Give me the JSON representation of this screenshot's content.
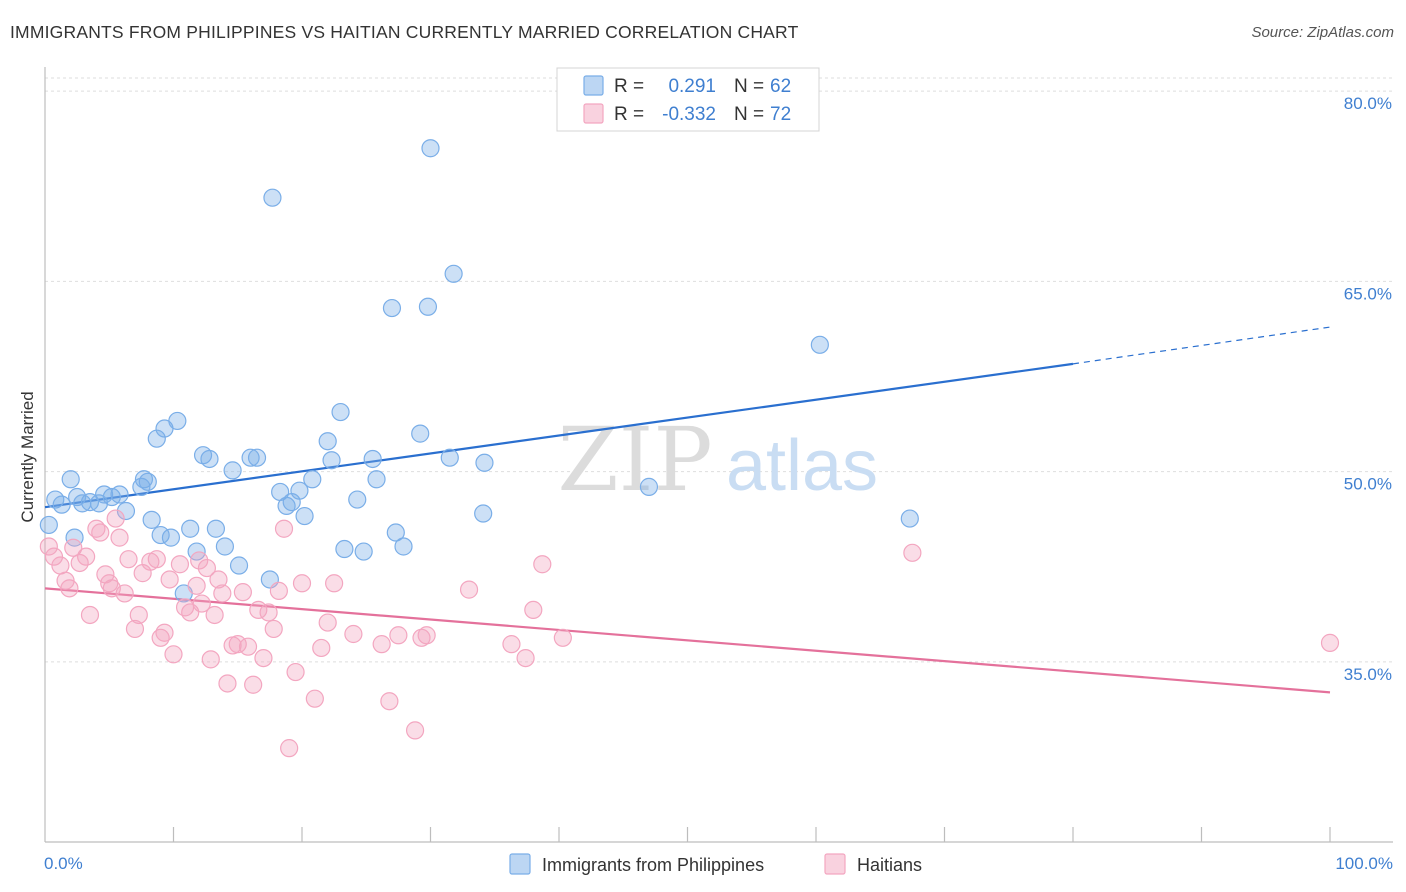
{
  "chart_data": {
    "type": "scatter",
    "title": "IMMIGRANTS FROM PHILIPPINES VS HAITIAN CURRENTLY MARRIED CORRELATION CHART",
    "source": "Source: ZipAtlas.com",
    "ylabel": "Currently Married",
    "xlim": [
      0,
      100
    ],
    "ylim": [
      20.8,
      82.3
    ],
    "x_tick_labels": [
      "0.0%",
      "100.0%"
    ],
    "y_ticks": [
      35.0,
      50.0,
      65.0,
      80.0
    ],
    "y_tick_labels": [
      "35.0%",
      "50.0%",
      "65.0%",
      "80.0%"
    ],
    "grid": true,
    "legend_position": "top-center",
    "watermark": {
      "part1": "ZIP",
      "part2": "atlas"
    },
    "stats": [
      {
        "r_label": "R =",
        "r_value": "0.291",
        "n_label": "N =",
        "n_value": "62"
      },
      {
        "r_label": "R =",
        "r_value": "-0.332",
        "n_label": "N =",
        "n_value": "72"
      }
    ],
    "series": [
      {
        "name": "Immigrants from Philippines",
        "color": "#7aaee8",
        "line_color": "#2a6fcf",
        "trend": {
          "x0": 0,
          "y0": 47.2,
          "x1": 80,
          "y1": 58.5,
          "x_dashed_end": 100,
          "y_dashed_end": 61.4
        },
        "points": [
          [
            0.3,
            45.8
          ],
          [
            0.8,
            47.8
          ],
          [
            1.3,
            47.4
          ],
          [
            2.0,
            49.4
          ],
          [
            2.3,
            44.8
          ],
          [
            2.9,
            47.5
          ],
          [
            3.5,
            47.6
          ],
          [
            4.2,
            47.5
          ],
          [
            4.6,
            48.2
          ],
          [
            5.2,
            48.0
          ],
          [
            5.8,
            48.2
          ],
          [
            6.3,
            46.9
          ],
          [
            7.5,
            48.8
          ],
          [
            7.7,
            49.4
          ],
          [
            8.0,
            49.2
          ],
          [
            8.3,
            46.2
          ],
          [
            8.7,
            52.6
          ],
          [
            9.3,
            53.4
          ],
          [
            9.8,
            44.8
          ],
          [
            10.3,
            54.0
          ],
          [
            10.8,
            40.4
          ],
          [
            11.3,
            45.5
          ],
          [
            11.8,
            43.7
          ],
          [
            12.3,
            51.3
          ],
          [
            12.8,
            51.0
          ],
          [
            13.3,
            45.5
          ],
          [
            14.0,
            44.1
          ],
          [
            14.6,
            50.1
          ],
          [
            15.1,
            42.6
          ],
          [
            16.0,
            51.1
          ],
          [
            16.5,
            51.1
          ],
          [
            17.5,
            41.5
          ],
          [
            17.7,
            71.6
          ],
          [
            18.3,
            48.4
          ],
          [
            18.8,
            47.3
          ],
          [
            19.2,
            47.6
          ],
          [
            19.8,
            48.5
          ],
          [
            20.2,
            46.5
          ],
          [
            20.8,
            49.4
          ],
          [
            22.0,
            52.4
          ],
          [
            22.3,
            50.9
          ],
          [
            23.0,
            54.7
          ],
          [
            23.3,
            43.9
          ],
          [
            24.3,
            47.8
          ],
          [
            24.8,
            43.7
          ],
          [
            25.5,
            51.0
          ],
          [
            25.8,
            49.4
          ],
          [
            27.0,
            62.9
          ],
          [
            27.3,
            45.2
          ],
          [
            27.9,
            44.1
          ],
          [
            29.2,
            53.0
          ],
          [
            29.8,
            63.0
          ],
          [
            30.0,
            75.5
          ],
          [
            31.5,
            51.1
          ],
          [
            31.8,
            65.6
          ],
          [
            34.1,
            46.7
          ],
          [
            34.2,
            50.7
          ],
          [
            47.0,
            48.8
          ],
          [
            60.3,
            60.0
          ],
          [
            67.3,
            46.3
          ],
          [
            2.5,
            48.0
          ],
          [
            9.0,
            45.0
          ]
        ]
      },
      {
        "name": "Haitians",
        "color": "#f3a6c0",
        "line_color": "#e4719b",
        "trend": {
          "x0": 0,
          "y0": 40.8,
          "x1": 100,
          "y1": 32.6
        },
        "points": [
          [
            0.3,
            44.1
          ],
          [
            0.7,
            43.3
          ],
          [
            1.2,
            42.6
          ],
          [
            1.6,
            41.4
          ],
          [
            1.9,
            40.8
          ],
          [
            2.2,
            44.0
          ],
          [
            2.7,
            42.8
          ],
          [
            3.2,
            43.3
          ],
          [
            3.5,
            38.7
          ],
          [
            4.0,
            45.5
          ],
          [
            4.3,
            45.2
          ],
          [
            4.7,
            41.9
          ],
          [
            5.0,
            41.2
          ],
          [
            5.5,
            46.3
          ],
          [
            5.8,
            44.8
          ],
          [
            6.2,
            40.4
          ],
          [
            6.5,
            43.1
          ],
          [
            7.0,
            37.6
          ],
          [
            7.3,
            38.7
          ],
          [
            7.6,
            42.0
          ],
          [
            8.2,
            42.9
          ],
          [
            8.7,
            43.1
          ],
          [
            9.0,
            36.9
          ],
          [
            9.3,
            37.3
          ],
          [
            9.7,
            41.5
          ],
          [
            10.0,
            35.6
          ],
          [
            10.5,
            42.7
          ],
          [
            10.9,
            39.3
          ],
          [
            11.3,
            38.9
          ],
          [
            11.8,
            41.0
          ],
          [
            12.2,
            39.6
          ],
          [
            12.6,
            42.4
          ],
          [
            12.9,
            35.2
          ],
          [
            13.2,
            38.7
          ],
          [
            13.5,
            41.5
          ],
          [
            13.8,
            40.4
          ],
          [
            14.2,
            33.3
          ],
          [
            14.6,
            36.3
          ],
          [
            15.0,
            36.4
          ],
          [
            15.4,
            40.5
          ],
          [
            15.8,
            36.2
          ],
          [
            16.2,
            33.2
          ],
          [
            16.6,
            39.1
          ],
          [
            17.0,
            35.3
          ],
          [
            17.4,
            38.9
          ],
          [
            17.8,
            37.6
          ],
          [
            18.2,
            40.6
          ],
          [
            18.6,
            45.5
          ],
          [
            19.0,
            28.2
          ],
          [
            19.5,
            34.2
          ],
          [
            20.0,
            41.2
          ],
          [
            21.0,
            32.1
          ],
          [
            21.5,
            36.1
          ],
          [
            22.0,
            38.1
          ],
          [
            22.5,
            41.2
          ],
          [
            24.0,
            37.2
          ],
          [
            26.2,
            36.4
          ],
          [
            26.8,
            31.9
          ],
          [
            27.5,
            37.1
          ],
          [
            28.8,
            29.6
          ],
          [
            29.3,
            36.9
          ],
          [
            29.7,
            37.1
          ],
          [
            33.0,
            40.7
          ],
          [
            36.3,
            36.4
          ],
          [
            37.4,
            35.3
          ],
          [
            38.0,
            39.1
          ],
          [
            38.7,
            42.7
          ],
          [
            40.3,
            36.9
          ],
          [
            67.5,
            43.6
          ],
          [
            100.0,
            36.5
          ],
          [
            5.2,
            40.8
          ],
          [
            12.0,
            43.0
          ]
        ]
      }
    ]
  }
}
